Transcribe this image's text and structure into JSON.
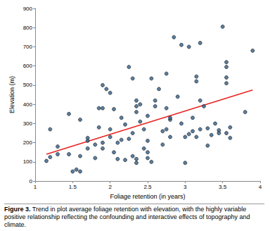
{
  "chart_data": {
    "type": "scatter",
    "x_label": "Foliage retention (in years)",
    "y_label": "Elevation (m)",
    "caption_label": "Figure 3.",
    "caption": "Trend in plot average foliage retention with elevation, with the highly variable positive relationship reflecting the confounding and interactive effects of topography and climate.",
    "color": "#2f5f8a",
    "marker": "circle",
    "x": [
      1.15,
      1.2,
      1.2,
      1.3,
      1.3,
      1.45,
      1.45,
      1.5,
      1.55,
      1.6,
      1.6,
      1.6,
      1.7,
      1.7,
      1.7,
      1.8,
      1.8,
      1.85,
      1.85,
      1.9,
      1.9,
      1.9,
      1.9,
      1.95,
      2.0,
      2.0,
      2.0,
      2.05,
      2.05,
      2.1,
      2.1,
      2.15,
      2.15,
      2.2,
      2.2,
      2.25,
      2.25,
      2.3,
      2.3,
      2.3,
      2.35,
      2.35,
      2.35,
      2.35,
      2.35,
      2.4,
      2.4,
      2.45,
      2.45,
      2.5,
      2.5,
      2.5,
      2.5,
      2.55,
      2.55,
      2.6,
      2.6,
      2.65,
      2.7,
      2.7,
      2.75,
      2.75,
      2.75,
      2.8,
      2.8,
      2.8,
      2.85,
      2.9,
      2.95,
      2.95,
      3.0,
      3.0,
      3.05,
      3.05,
      3.1,
      3.1,
      3.15,
      3.15,
      3.15,
      3.2,
      3.2,
      3.2,
      3.25,
      3.3,
      3.3,
      3.35,
      3.4,
      3.45,
      3.45,
      3.5,
      3.55,
      3.55,
      3.55,
      3.55,
      3.55,
      3.6,
      3.6,
      3.8,
      3.9
    ],
    "values": [
      105,
      125,
      270,
      180,
      140,
      350,
      140,
      50,
      60,
      50,
      320,
      130,
      170,
      210,
      225,
      190,
      120,
      280,
      380,
      200,
      380,
      500,
      170,
      480,
      460,
      270,
      230,
      150,
      375,
      200,
      115,
      330,
      215,
      110,
      295,
      595,
      220,
      535,
      130,
      250,
      115,
      420,
      95,
      390,
      360,
      400,
      310,
      170,
      270,
      120,
      150,
      210,
      340,
      535,
      100,
      420,
      390,
      480,
      190,
      260,
      560,
      270,
      380,
      320,
      330,
      230,
      750,
      440,
      710,
      300,
      95,
      230,
      245,
      700,
      330,
      260,
      545,
      520,
      230,
      720,
      270,
      420,
      390,
      185,
      275,
      240,
      300,
      265,
      250,
      805,
      620,
      595,
      540,
      510,
      250,
      280,
      225,
      360,
      680
    ],
    "trend": {
      "x": [
        1.15,
        3.9
      ],
      "values": [
        140,
        475
      ],
      "color": "#e8231f",
      "line_style": "solid"
    },
    "xlim": [
      1,
      4
    ],
    "xticks": [
      1,
      1.5,
      2,
      2.5,
      3,
      3.5,
      4
    ],
    "ylim": [
      0,
      900
    ],
    "yticks": [
      0,
      100,
      200,
      300,
      400,
      500,
      600,
      700,
      800,
      900
    ],
    "grid": false
  }
}
